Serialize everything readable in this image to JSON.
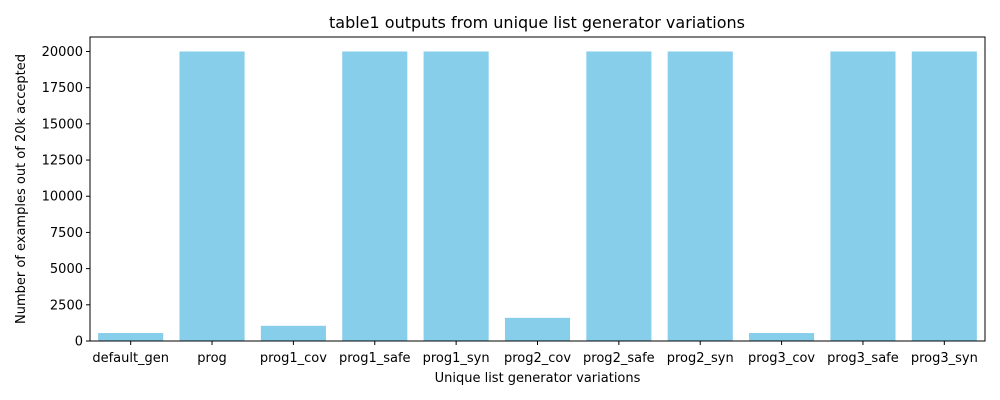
{
  "chart_data": {
    "type": "bar",
    "title": "table1 outputs from unique list generator variations",
    "xlabel": "Unique list generator variations",
    "ylabel": "Number of examples out of 20k accepted",
    "categories": [
      "default_gen",
      "prog",
      "prog1_cov",
      "prog1_safe",
      "prog1_syn",
      "prog2_cov",
      "prog2_safe",
      "prog2_syn",
      "prog3_cov",
      "prog3_safe",
      "prog3_syn"
    ],
    "values": [
      550,
      20000,
      1050,
      20000,
      20000,
      1600,
      20000,
      20000,
      550,
      20000,
      20000
    ],
    "ylim": [
      0,
      21000
    ],
    "yticks": [
      0,
      2500,
      5000,
      7500,
      10000,
      12500,
      15000,
      17500,
      20000
    ],
    "grid": false,
    "bar_color": "#87ceeb"
  }
}
